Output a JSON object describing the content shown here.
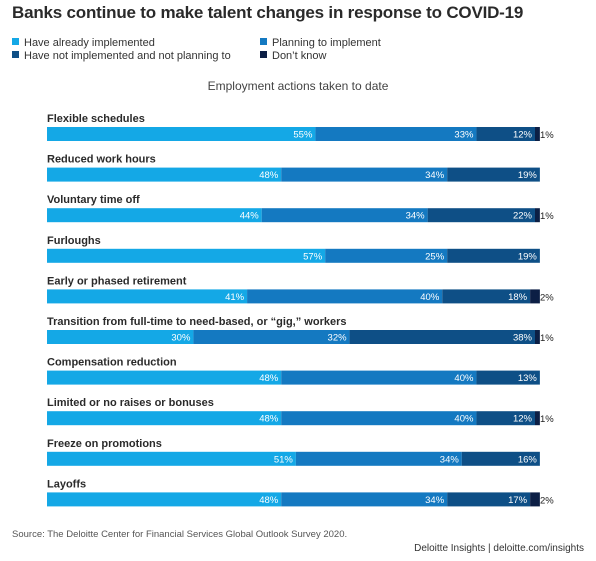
{
  "title": "Banks continue to make talent changes in response to COVID-19",
  "subtitle": "Employment actions taken to date",
  "source": "Source: The Deloitte Center for Financial Services Global Outlook Survey 2020.",
  "footer": "Deloitte Insights | deloitte.com/insights",
  "colors": {
    "implemented": "#14a8e6",
    "planning": "#1479c1",
    "not_planning": "#0e4f86",
    "dont_know": "#0c1f45"
  },
  "chart_data": {
    "type": "bar",
    "orientation": "horizontal-stacked-100",
    "categories": [
      "Flexible schedules",
      "Reduced work hours",
      "Voluntary time off",
      "Furloughs",
      "Early or phased retirement",
      "Transition from full-time to need-based, or “gig,” workers",
      "Compensation reduction",
      "Limited or no raises or bonuses",
      "Freeze on promotions",
      "Layoffs"
    ],
    "series": [
      {
        "name": "Have already implemented",
        "values": [
          55,
          48,
          44,
          57,
          41,
          30,
          48,
          48,
          51,
          48
        ],
        "labels": [
          "55%",
          "48%",
          "44%",
          "57%",
          "41%",
          "30%",
          "48%",
          "48%",
          "51%",
          "48%"
        ]
      },
      {
        "name": "Planning to implement",
        "values": [
          33,
          34,
          34,
          25,
          40,
          32,
          40,
          40,
          34,
          34
        ],
        "labels": [
          "33%",
          "34%",
          "34%",
          "25%",
          "40%",
          "32%",
          "40%",
          "40%",
          "34%",
          "34%"
        ]
      },
      {
        "name": "Have not implemented and not planning to",
        "values": [
          12,
          19,
          22,
          19,
          18,
          38,
          13,
          12,
          16,
          17
        ],
        "labels": [
          "12%",
          "19%",
          "22%",
          "19%",
          "18%",
          "38%",
          "13%",
          "12%",
          "16%",
          "17%"
        ]
      },
      {
        "name": "Don’t know",
        "values": [
          1,
          0,
          1,
          0,
          2,
          1,
          0,
          1,
          0,
          2
        ],
        "labels": [
          "1%",
          "",
          "1%",
          "",
          "2%",
          "1%",
          "",
          "1%",
          "",
          "2%"
        ]
      }
    ],
    "xlim": [
      0,
      100
    ],
    "legend_position": "top-left"
  }
}
